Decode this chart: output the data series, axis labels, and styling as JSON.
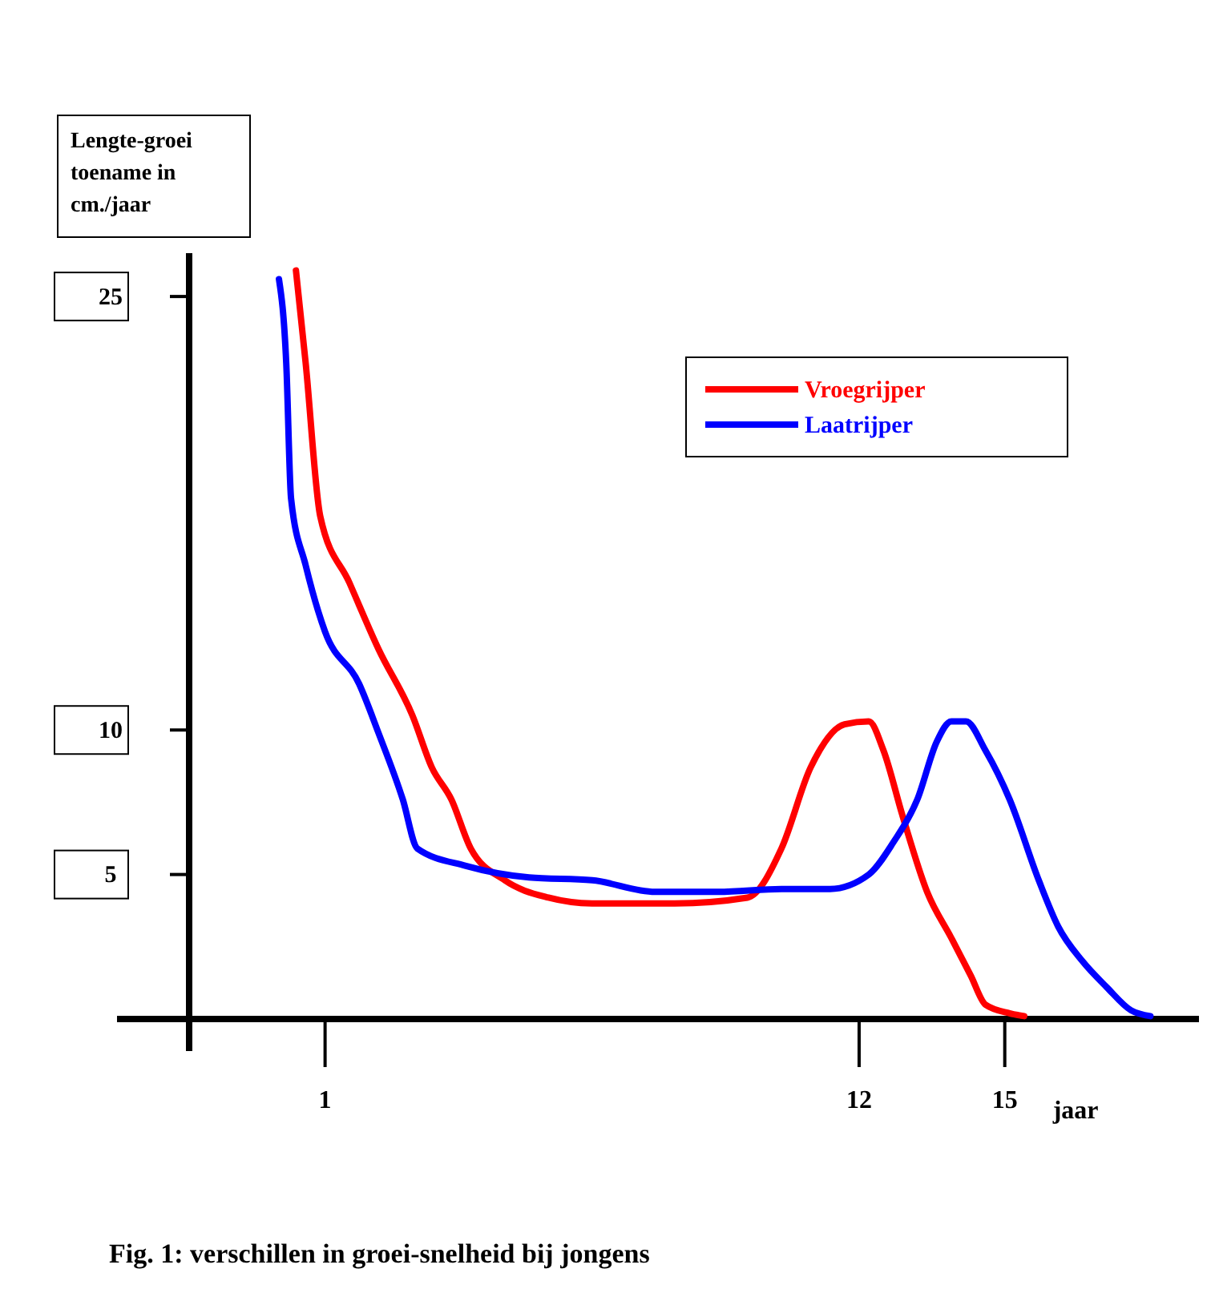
{
  "chart_data": {
    "type": "line",
    "title": "Fig. 1: verschillen in groei-snelheid bij jongens",
    "ylabel": "Lengte-groei toename in cm./jaar",
    "xlabel": "jaar",
    "xlim": [
      -1.8,
      19
    ],
    "xticks": [
      1,
      12,
      15
    ],
    "ylim": [
      0,
      26.5
    ],
    "yticks": [
      5,
      10,
      25
    ],
    "legend": "top right",
    "grid": false,
    "series": [
      {
        "name": "Vroegrijper",
        "color": "#ff0000",
        "x": [
          0.4,
          0.6,
          0.9,
          1.5,
          2.1,
          2.8,
          3.2,
          3.6,
          4.0,
          4.7,
          5.6,
          6.5,
          8.2,
          9.7,
          10.4,
          11.0,
          11.7,
          12.2,
          12.5,
          12.9,
          13.4,
          13.9,
          14.3,
          14.6,
          15.1,
          15.4
        ],
        "values": [
          25.9,
          22.7,
          17.4,
          15.1,
          12.8,
          10.5,
          8.7,
          7.6,
          5.9,
          4.8,
          4.2,
          4.0,
          4.0,
          4.2,
          5.9,
          8.7,
          10.2,
          10.3,
          9.3,
          7.0,
          4.4,
          2.8,
          1.5,
          0.5,
          0.2,
          0.1
        ]
      },
      {
        "name": "Laatrijper",
        "color": "#0000ff",
        "x": [
          0.05,
          0.2,
          0.3,
          0.6,
          1.0,
          1.7,
          2.1,
          2.6,
          2.9,
          3.9,
          5.2,
          6.5,
          7.8,
          9.1,
          10.4,
          11.4,
          12.2,
          12.7,
          13.2,
          13.6,
          13.9,
          14.2,
          14.6,
          15.1,
          15.7,
          16.1,
          16.6,
          17.1,
          17.6,
          18.0
        ],
        "values": [
          25.6,
          22.7,
          18.0,
          15.7,
          13.4,
          11.6,
          9.9,
          7.6,
          5.9,
          5.3,
          4.9,
          4.8,
          4.4,
          4.4,
          4.5,
          4.5,
          5.0,
          6.1,
          7.6,
          9.6,
          10.3,
          10.3,
          9.3,
          7.6,
          4.8,
          3.2,
          2.0,
          1.1,
          0.3,
          0.1
        ]
      }
    ]
  }
}
